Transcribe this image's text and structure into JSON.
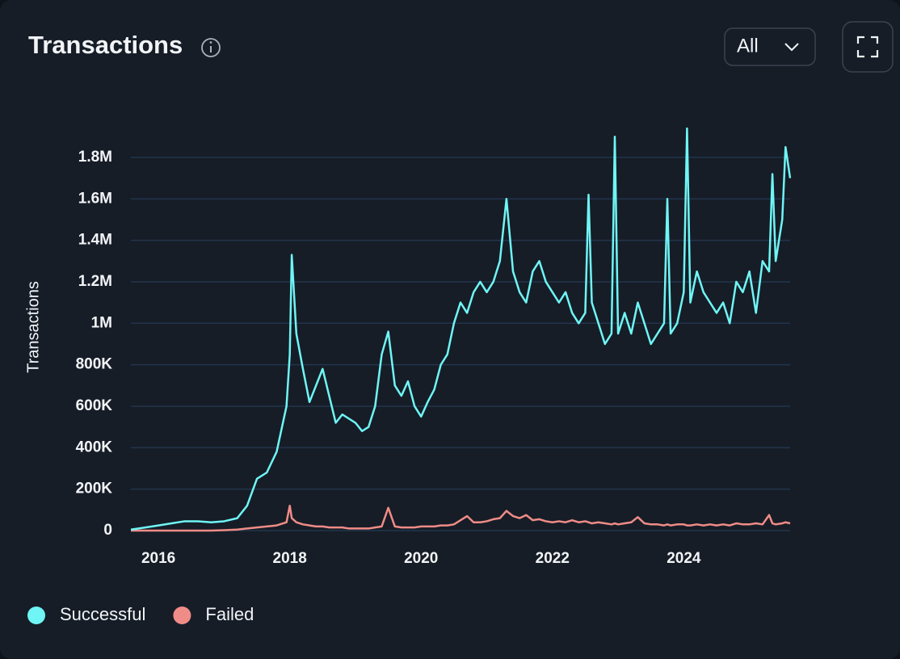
{
  "header": {
    "filter": "All"
  },
  "chart_data": {
    "type": "line",
    "title": "Transactions",
    "y_label": "Transactions",
    "x": [
      2015.58,
      2015.8,
      2016.0,
      2016.2,
      2016.4,
      2016.6,
      2016.8,
      2017.0,
      2017.2,
      2017.35,
      2017.5,
      2017.65,
      2017.8,
      2017.95,
      2018.0,
      2018.03,
      2018.1,
      2018.2,
      2018.3,
      2018.4,
      2018.5,
      2018.6,
      2018.7,
      2018.8,
      2018.9,
      2019.0,
      2019.1,
      2019.2,
      2019.3,
      2019.4,
      2019.5,
      2019.6,
      2019.7,
      2019.8,
      2019.9,
      2020.0,
      2020.1,
      2020.2,
      2020.3,
      2020.4,
      2020.5,
      2020.6,
      2020.7,
      2020.8,
      2020.9,
      2021.0,
      2021.1,
      2021.2,
      2021.3,
      2021.4,
      2021.5,
      2021.6,
      2021.7,
      2021.8,
      2021.9,
      2022.0,
      2022.1,
      2022.2,
      2022.3,
      2022.4,
      2022.5,
      2022.55,
      2022.6,
      2022.7,
      2022.8,
      2022.9,
      2022.95,
      2023.0,
      2023.1,
      2023.2,
      2023.3,
      2023.4,
      2023.5,
      2023.6,
      2023.7,
      2023.75,
      2023.8,
      2023.9,
      2024.0,
      2024.05,
      2024.1,
      2024.2,
      2024.3,
      2024.4,
      2024.5,
      2024.6,
      2024.7,
      2024.8,
      2024.9,
      2025.0,
      2025.1,
      2025.2,
      2025.3,
      2025.35,
      2025.4,
      2025.5,
      2025.55,
      2025.62
    ],
    "series": [
      {
        "name": "Successful",
        "color": "#6ff5f5",
        "values": [
          5000,
          15000,
          25000,
          35000,
          45000,
          45000,
          40000,
          45000,
          60000,
          120000,
          250000,
          280000,
          380000,
          600000,
          850000,
          1330000,
          950000,
          780000,
          620000,
          700000,
          780000,
          650000,
          520000,
          560000,
          540000,
          520000,
          480000,
          500000,
          600000,
          850000,
          960000,
          700000,
          650000,
          720000,
          600000,
          550000,
          620000,
          680000,
          800000,
          850000,
          1000000,
          1100000,
          1050000,
          1150000,
          1200000,
          1150000,
          1200000,
          1300000,
          1600000,
          1250000,
          1150000,
          1100000,
          1250000,
          1300000,
          1200000,
          1150000,
          1100000,
          1150000,
          1050000,
          1000000,
          1050000,
          1620000,
          1100000,
          1000000,
          900000,
          950000,
          1900000,
          950000,
          1050000,
          950000,
          1100000,
          1000000,
          900000,
          950000,
          1000000,
          1600000,
          950000,
          1000000,
          1150000,
          1940000,
          1100000,
          1250000,
          1150000,
          1100000,
          1050000,
          1100000,
          1000000,
          1200000,
          1150000,
          1250000,
          1050000,
          1300000,
          1250000,
          1720000,
          1300000,
          1500000,
          1850000,
          1700000
        ]
      },
      {
        "name": "Failed",
        "color": "#f08c87",
        "values": [
          0,
          0,
          0,
          0,
          0,
          0,
          0,
          2000,
          5000,
          10000,
          15000,
          20000,
          25000,
          40000,
          120000,
          60000,
          40000,
          30000,
          25000,
          20000,
          20000,
          15000,
          15000,
          15000,
          10000,
          10000,
          10000,
          10000,
          15000,
          20000,
          110000,
          20000,
          15000,
          15000,
          15000,
          20000,
          20000,
          20000,
          25000,
          25000,
          30000,
          50000,
          70000,
          40000,
          40000,
          45000,
          55000,
          60000,
          95000,
          70000,
          60000,
          75000,
          50000,
          55000,
          45000,
          40000,
          45000,
          40000,
          50000,
          40000,
          45000,
          40000,
          35000,
          40000,
          35000,
          30000,
          35000,
          30000,
          35000,
          40000,
          65000,
          35000,
          30000,
          30000,
          25000,
          30000,
          25000,
          30000,
          30000,
          25000,
          25000,
          30000,
          25000,
          30000,
          25000,
          30000,
          25000,
          35000,
          30000,
          30000,
          35000,
          30000,
          75000,
          35000,
          30000,
          35000,
          40000,
          35000
        ]
      }
    ],
    "xlim": [
      2015.58,
      2025.62
    ],
    "xticks": [
      2016,
      2018,
      2020,
      2022,
      2024
    ],
    "ylim": [
      0,
      1950000
    ],
    "yticks": [
      0,
      {
        "value": 200000,
        "label": "200K"
      },
      {
        "value": 400000,
        "label": "400K"
      },
      {
        "value": 600000,
        "label": "600K"
      },
      {
        "value": 800000,
        "label": "800K"
      },
      {
        "value": 1000000,
        "label": "1M"
      },
      {
        "value": 1200000,
        "label": "1.2M"
      },
      {
        "value": 1400000,
        "label": "1.4M"
      },
      {
        "value": 1600000,
        "label": "1.6M"
      },
      {
        "value": 1800000,
        "label": "1.8M"
      }
    ],
    "grid": true
  }
}
